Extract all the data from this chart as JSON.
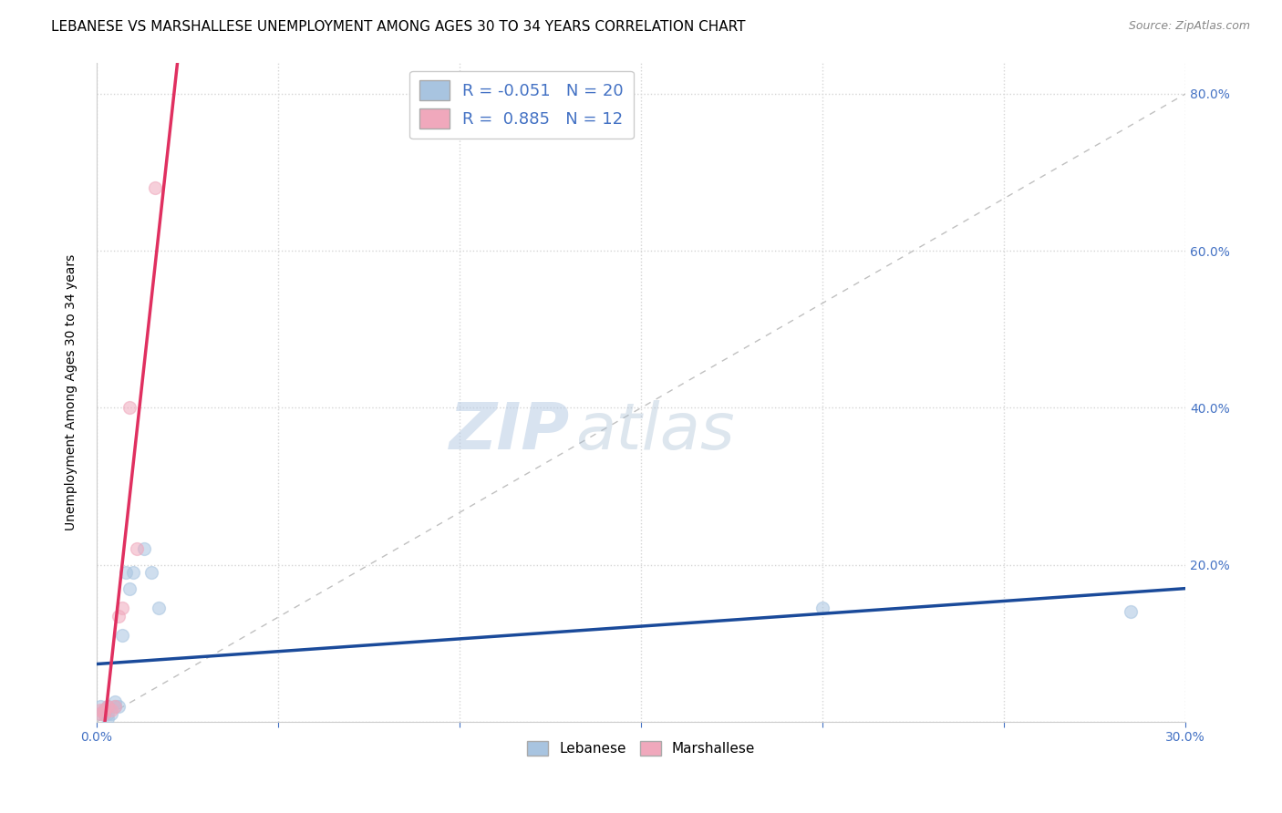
{
  "title": "LEBANESE VS MARSHALLESE UNEMPLOYMENT AMONG AGES 30 TO 34 YEARS CORRELATION CHART",
  "source": "Source: ZipAtlas.com",
  "ylabel": "Unemployment Among Ages 30 to 34 years",
  "xlim": [
    0.0,
    0.3
  ],
  "ylim": [
    0.0,
    0.84
  ],
  "xticks": [
    0.0,
    0.05,
    0.1,
    0.15,
    0.2,
    0.25,
    0.3
  ],
  "yticks": [
    0.0,
    0.2,
    0.4,
    0.6,
    0.8
  ],
  "ytick_labels": [
    "",
    "20.0%",
    "40.0%",
    "60.0%",
    "80.0%"
  ],
  "xtick_labels": [
    "0.0%",
    "",
    "",
    "",
    "",
    "",
    "30.0%"
  ],
  "legend_R1": "R = -0.051",
  "legend_N1": "N = 20",
  "legend_R2": "R =  0.885",
  "legend_N2": "N = 12",
  "lebanese_color": "#a8c4e0",
  "marshallese_color": "#f0a8bc",
  "lebanese_line_color": "#1a4a9a",
  "marshallese_line_color": "#e03060",
  "diagonal_color": "#c0c0c0",
  "watermark_zip": "ZIP",
  "watermark_atlas": "atlas",
  "lebanese_x": [
    0.001,
    0.001,
    0.002,
    0.002,
    0.003,
    0.003,
    0.003,
    0.004,
    0.005,
    0.005,
    0.006,
    0.007,
    0.008,
    0.009,
    0.01,
    0.013,
    0.015,
    0.017,
    0.2,
    0.285
  ],
  "lebanese_y": [
    0.01,
    0.02,
    0.01,
    0.015,
    0.005,
    0.01,
    0.02,
    0.01,
    0.02,
    0.025,
    0.02,
    0.11,
    0.19,
    0.17,
    0.19,
    0.22,
    0.19,
    0.145,
    0.145,
    0.14
  ],
  "marshallese_x": [
    0.001,
    0.001,
    0.002,
    0.002,
    0.003,
    0.004,
    0.005,
    0.006,
    0.007,
    0.009,
    0.011,
    0.016
  ],
  "marshallese_y": [
    0.01,
    0.015,
    0.01,
    0.015,
    0.02,
    0.015,
    0.02,
    0.135,
    0.145,
    0.4,
    0.22,
    0.68
  ],
  "lebanese_trendline": [
    -0.051,
    0.1
  ],
  "marshallese_trendline": [
    0.885,
    8.0
  ],
  "marker_size": 100,
  "alpha": 0.55,
  "background_color": "#ffffff",
  "grid_color": "#d5d5d5",
  "title_fontsize": 11,
  "axis_label_fontsize": 10,
  "tick_fontsize": 10,
  "tick_color": "#4472c4",
  "legend_fontsize": 13
}
